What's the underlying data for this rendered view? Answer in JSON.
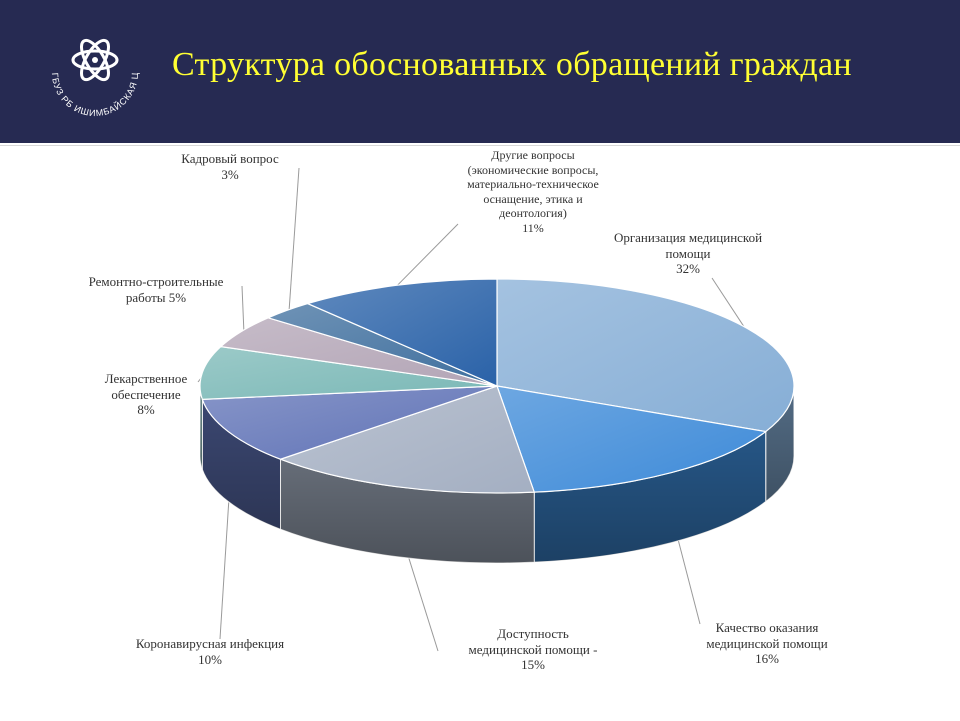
{
  "header": {
    "title": "Структура обоснованных обращений граждан",
    "logo_text": "ГБУЗ РБ ИШИМБАЙСКАЯ ЦРБ",
    "bg_color": "#262a52",
    "title_color": "#ffff33"
  },
  "chart_data": {
    "type": "pie",
    "title": "Структура обоснованных обращений граждан",
    "three_d": true,
    "unit": "%",
    "slices": [
      {
        "label": "Организация медицинской помощи",
        "pct_text": "32%",
        "value": 32,
        "color": "#86aed6"
      },
      {
        "label": "Качество оказания медицинской помощи",
        "pct_text": "16%",
        "value": 16,
        "color": "#3d8ad8"
      },
      {
        "label": "Доступность медицинской помощи  -",
        "pct_text": "15%",
        "value": 15,
        "color": "#a4afc2"
      },
      {
        "label": "Коронавирусная инфекция",
        "pct_text": "10%",
        "value": 10,
        "color": "#5f72b6"
      },
      {
        "label": "Лекарственное обеспечение",
        "pct_text": "8%",
        "value": 8,
        "color": "#7ab8b6"
      },
      {
        "label": "Ремонтно-строительные работы",
        "pct_text": "5%",
        "value": 5,
        "color": "#b3a5b6"
      },
      {
        "label": "Кадровый вопрос",
        "pct_text": "3%",
        "value": 3,
        "color": "#3f6f9e"
      },
      {
        "label": "Другие вопросы (экономические вопросы, материально-техническое оснащение, этика и деонтология)",
        "pct_text": "11%",
        "value": 11,
        "color": "#2a62a8"
      }
    ]
  },
  "labels": {
    "org_name_1": "Организация медицинской",
    "org_name_2": "помощи",
    "org_pct": "32%",
    "qual_name_1": "Качество оказания",
    "qual_name_2": "медицинской помощи",
    "qual_pct": "16%",
    "dost_name_1": "Доступность",
    "dost_name_2": "медицинской помощи  -",
    "dost_pct": "15%",
    "covid_name": "Коронавирусная инфекция",
    "covid_pct": "10%",
    "lek_name_1": "Лекарственное",
    "lek_name_2": "обеспечение",
    "lek_pct": "8%",
    "rem_name_1": "Ремонтно-строительные",
    "rem_name_2": "работы 5%",
    "kadr_name": "Кадровый вопрос",
    "kadr_pct": "3%",
    "other_name_1": "Другие вопросы",
    "other_name_2": "(экономические вопросы,",
    "other_name_3": "материально-техническое",
    "other_name_4": "оснащение, этика и",
    "other_name_5": "деонтология)",
    "other_pct": "11%"
  }
}
